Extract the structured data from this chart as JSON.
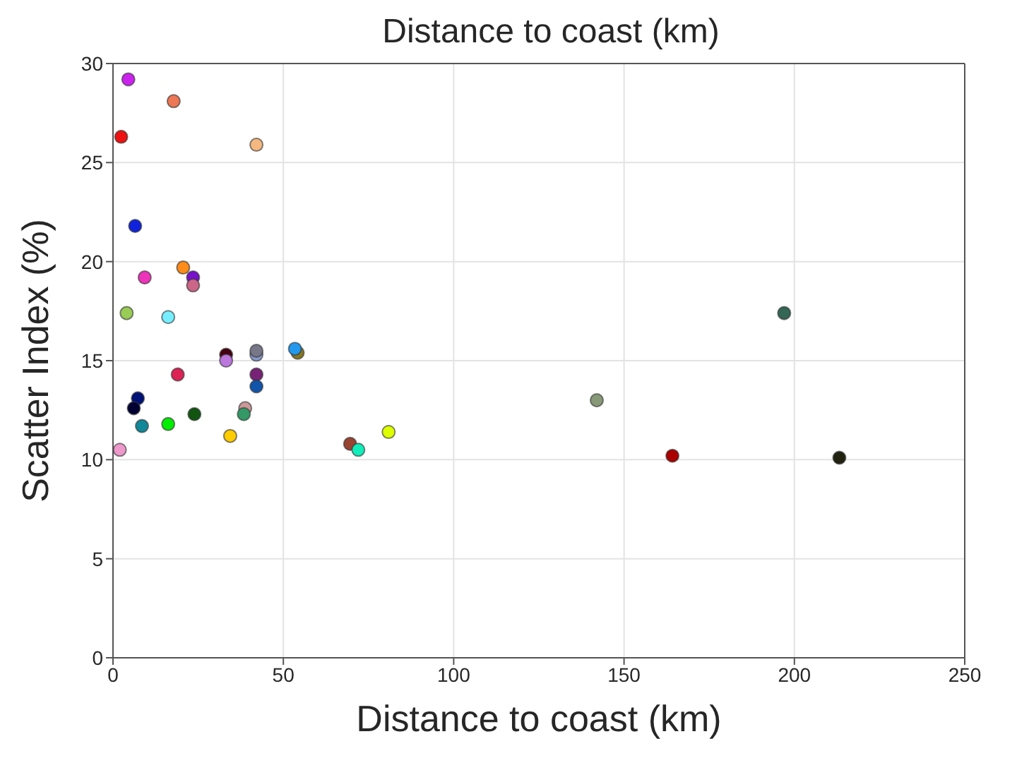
{
  "chart_data": {
    "type": "scatter",
    "title": "Distance to coast (km)",
    "xlabel": "Distance to coast (km)",
    "ylabel": "Scatter Index (%)",
    "x": [
      4.5,
      17.8,
      2.4,
      42.1,
      6.5,
      20.6,
      23.5,
      23.5,
      9.3,
      4.0,
      16.2,
      33.2,
      33.2,
      42.1,
      42.1,
      54.2,
      53.4,
      19.0,
      42.1,
      42.1,
      7.3,
      6.1,
      38.8,
      38.4,
      23.9,
      8.5,
      16.2,
      34.4,
      2.0,
      69.6,
      72.0,
      80.9,
      142.0,
      164.2,
      197.0,
      213.2
    ],
    "values": [
      29.2,
      28.1,
      26.3,
      25.9,
      21.8,
      19.7,
      19.2,
      18.8,
      19.2,
      17.4,
      17.2,
      15.3,
      15.0,
      15.3,
      15.5,
      15.4,
      15.6,
      14.3,
      14.3,
      13.7,
      13.1,
      12.6,
      12.6,
      12.3,
      12.3,
      11.7,
      11.8,
      11.2,
      10.5,
      10.8,
      10.5,
      11.4,
      13.0,
      10.2,
      17.4,
      10.1
    ],
    "colors": [
      "#cc22ee",
      "#ee7755",
      "#ee1111",
      "#f4b880",
      "#1122dd",
      "#ff8c1a",
      "#7711cc",
      "#cc6688",
      "#ee33bb",
      "#99cc55",
      "#77eeff",
      "#440011",
      "#bb77dd",
      "#8899cc",
      "#777788",
      "#887722",
      "#2299ee",
      "#dd2255",
      "#772277",
      "#1155aa",
      "#001177",
      "#000033",
      "#cc9999",
      "#339966",
      "#115511",
      "#118899",
      "#00ee00",
      "#ffcc00",
      "#ee99cc",
      "#994433",
      "#11eebb",
      "#ddff00",
      "#889977",
      "#aa0000",
      "#336655",
      "#222211"
    ],
    "xlim": [
      0,
      250
    ],
    "xticks": [
      0,
      50,
      100,
      150,
      200,
      250
    ],
    "ylim": [
      0,
      30
    ],
    "yticks": [
      0,
      5,
      10,
      15,
      20,
      25,
      30
    ],
    "grid": true,
    "marker": "circle"
  }
}
